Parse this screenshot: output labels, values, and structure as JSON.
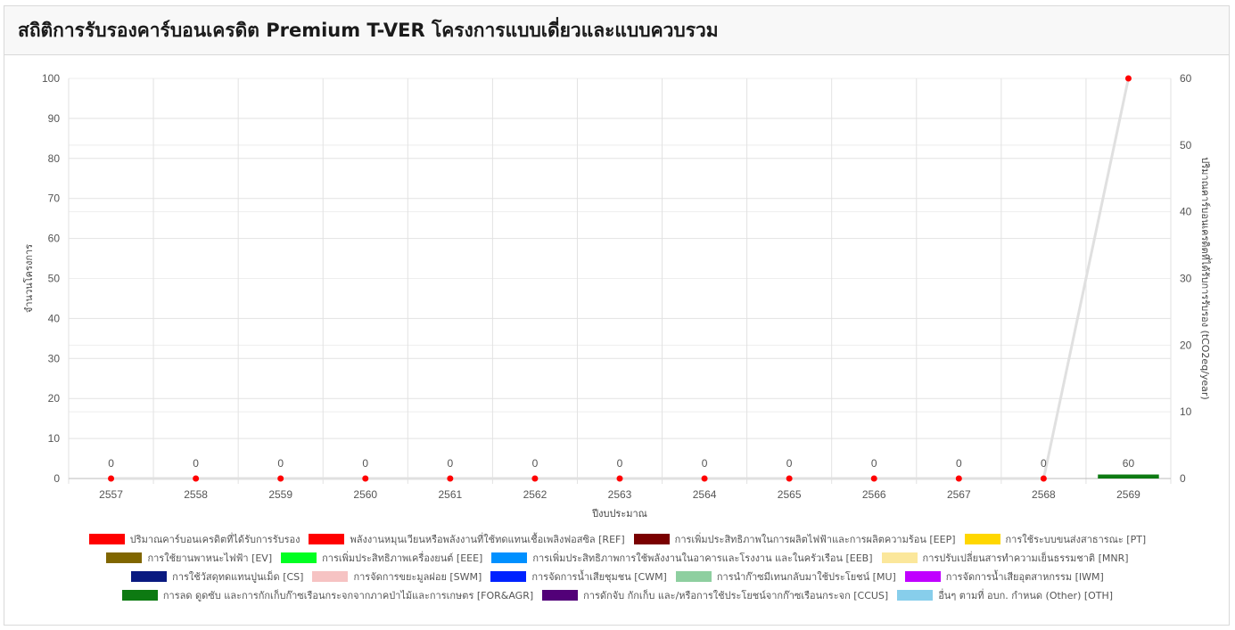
{
  "header": {
    "title": "สถิติการรับรองคาร์บอนเครดิต Premium T-VER โครงการแบบเดี่ยวและแบบควบรวม"
  },
  "chart_data": {
    "type": "bar",
    "xlabel": "ปีงบประมาณ",
    "ylabel_left": "จำนวนโครงการ",
    "ylabel_right": "ปริมาณคาร์บอนเครดิตที่ได้รับการรับรอง (tCO2eq/year)",
    "ylim_left": [
      0,
      100
    ],
    "ylim_right": [
      0,
      60
    ],
    "yticks_left": [
      "0",
      "10",
      "20",
      "30",
      "40",
      "50",
      "60",
      "70",
      "80",
      "90",
      "100"
    ],
    "yticks_right": [
      "0",
      "10",
      "20",
      "30",
      "40",
      "50",
      "60"
    ],
    "grid": true,
    "legend_position": "bottom",
    "categories": [
      "2557",
      "2558",
      "2559",
      "2560",
      "2561",
      "2562",
      "2563",
      "2564",
      "2565",
      "2566",
      "2567",
      "2568",
      "2569"
    ],
    "series": [
      {
        "name": "ปริมาณคาร์บอนเครดิตที่ได้รับการรับรอง",
        "type": "line",
        "axis": "right",
        "color": "#ff0000",
        "line_color": "#e0e0e0",
        "values": [
          0,
          0,
          0,
          0,
          0,
          0,
          0,
          0,
          0,
          0,
          0,
          0,
          60
        ]
      },
      {
        "name": "การลด ดูดซับ และการกักเก็บก๊าซเรือนกระจกจากภาคป่าไม้และการเกษตร [FOR&AGR]",
        "type": "bar",
        "axis": "left",
        "color": "#0d7a12",
        "values": [
          0,
          0,
          0,
          0,
          0,
          0,
          0,
          0,
          0,
          0,
          0,
          0,
          1
        ]
      }
    ],
    "data_labels": [
      "0",
      "0",
      "0",
      "0",
      "0",
      "0",
      "0",
      "0",
      "0",
      "0",
      "0",
      "0",
      "60"
    ],
    "legend": [
      [
        {
          "label": "ปริมาณคาร์บอนเครดิตที่ได้รับการรับรอง",
          "color": "#ff0000"
        },
        {
          "label": "พลังงานหมุนเวียนหรือพลังงานที่ใช้ทดแทนเชื้อเพลิงฟอสซิล [REF]",
          "color": "#ff0000"
        },
        {
          "label": "การเพิ่มประสิทธิภาพในการผลิตไฟฟ้าและการผลิตความร้อน [EEP]",
          "color": "#7a0000"
        },
        {
          "label": "การใช้ระบบขนส่งสาธารณะ [PT]",
          "color": "#ffd700"
        }
      ],
      [
        {
          "label": "การใช้ยานพาหนะไฟฟ้า [EV]",
          "color": "#806600"
        },
        {
          "label": "การเพิ่มประสิทธิภาพเครื่องยนต์ [EEE]",
          "color": "#00ff22"
        },
        {
          "label": "การเพิ่มประสิทธิภาพการใช้พลังงานในอาคารและโรงงาน และในครัวเรือน [EEB]",
          "color": "#0090ff"
        },
        {
          "label": "การปรับเปลี่ยนสารทำความเย็นธรรมชาติ [MNR]",
          "color": "#fbe79b"
        }
      ],
      [
        {
          "label": "การใช้วัสดุทดแทนปูนเม็ด [CS]",
          "color": "#0a1a80"
        },
        {
          "label": "การจัดการขยะมูลฝอย [SWM]",
          "color": "#f6c3c3"
        },
        {
          "label": "การจัดการน้ำเสียชุมชน [CWM]",
          "color": "#0022ff"
        },
        {
          "label": "การนำก๊าซมีเทนกลับมาใช้ประโยชน์ [MU]",
          "color": "#8ecfa0"
        },
        {
          "label": "การจัดการน้ำเสียอุตสาหกรรม [IWM]",
          "color": "#c000ff"
        }
      ],
      [
        {
          "label": "การลด ดูดซับ และการกักเก็บก๊าซเรือนกระจกจากภาคป่าไม้และการเกษตร [FOR&AGR]",
          "color": "#0d7a12"
        },
        {
          "label": "การดักจับ กักเก็บ และ/หรือการใช้ประโยชน์จากก๊าซเรือนกระจก [CCUS]",
          "color": "#520078"
        },
        {
          "label": "อื่นๆ ตามที่ อบก. กำหนด (Other) [OTH]",
          "color": "#87ceeb"
        }
      ]
    ]
  }
}
